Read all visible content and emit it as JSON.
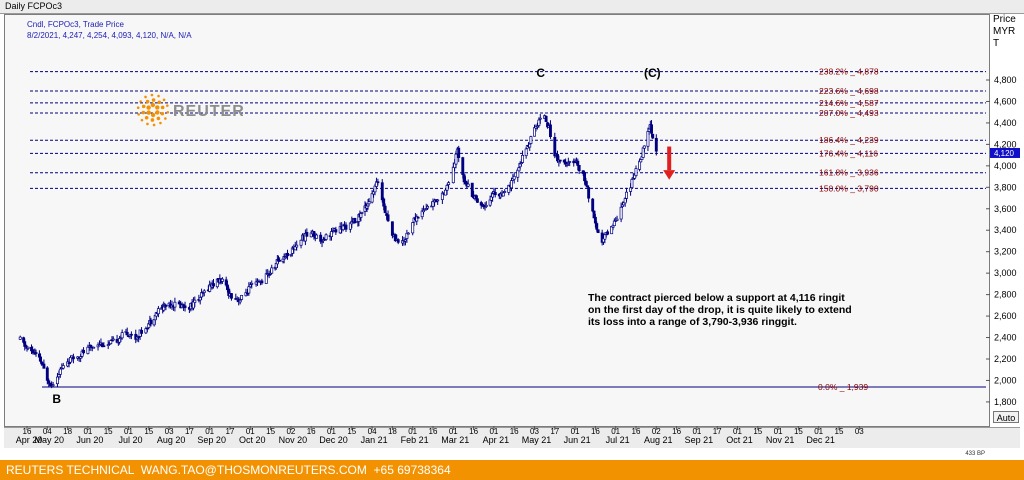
{
  "window": {
    "title": "Daily FCPOc3"
  },
  "header": {
    "line1": "Cndl, FCPOc3, Trade Price",
    "line2": "8/2/2021, 4,247, 4,254, 4,093, 4,120, N/A, N/A"
  },
  "price_axis": {
    "title": "Price\nMYR\nT"
  },
  "auto_label": "Auto",
  "logo": {
    "text": "REUTERS",
    "color": "#f39200"
  },
  "annotation": "The contract pierced below a support at 4,116 ringit\non the first day of the drop, it is quite likely to extend\nits loss into a range of 3,790-3,936 ringgit.",
  "footer": {
    "text": "REUTERS TECHNICAL  WANG.TAO@THOSMONREUTERS.COM  +65 69738364"
  },
  "colors": {
    "candle": "#000080",
    "fib_line": "#00007f",
    "fib_text": "#8b0000",
    "arrow": "#e02020",
    "footer_bg": "#f39200",
    "last_price_tag": "#1010c8"
  },
  "chart_data": {
    "type": "candlestick",
    "instrument": "FCPOc3",
    "ylim": [
      1700,
      5000
    ],
    "y_ticks": [
      1800,
      2000,
      2200,
      2400,
      2600,
      2800,
      3000,
      3200,
      3400,
      3600,
      3800,
      4000,
      4200,
      4400,
      4600,
      4800
    ],
    "y_tick_labels": [
      "1,800",
      "2,000",
      "2,200",
      "2,400",
      "2,600",
      "2,800",
      "3,000",
      "3,200",
      "3,400",
      "3,600",
      "3,800",
      "4,000",
      "4,200",
      "4,400",
      "4,600",
      "4,800"
    ],
    "x_ticks": [
      {
        "top": "16",
        "bottom": "Apr 20",
        "date": "2020-04-16"
      },
      {
        "top": "04",
        "bottom": "May 20",
        "date": "2020-05-04"
      },
      {
        "top": "18",
        "bottom": "",
        "date": "2020-05-18"
      },
      {
        "top": "01",
        "bottom": "Jun 20",
        "date": "2020-06-01"
      },
      {
        "top": "15",
        "bottom": "",
        "date": "2020-06-15"
      },
      {
        "top": "01",
        "bottom": "Jul 20",
        "date": "2020-07-01"
      },
      {
        "top": "15",
        "bottom": "",
        "date": "2020-07-15"
      },
      {
        "top": "03",
        "bottom": "Aug 20",
        "date": "2020-08-03"
      },
      {
        "top": "17",
        "bottom": "",
        "date": "2020-08-17"
      },
      {
        "top": "01",
        "bottom": "Sep 20",
        "date": "2020-09-01"
      },
      {
        "top": "17",
        "bottom": "",
        "date": "2020-09-17"
      },
      {
        "top": "01",
        "bottom": "Oct 20",
        "date": "2020-10-01"
      },
      {
        "top": "15",
        "bottom": "",
        "date": "2020-10-15"
      },
      {
        "top": "02",
        "bottom": "Nov 20",
        "date": "2020-11-02"
      },
      {
        "top": "16",
        "bottom": "",
        "date": "2020-11-16"
      },
      {
        "top": "01",
        "bottom": "Dec 20",
        "date": "2020-12-01"
      },
      {
        "top": "15",
        "bottom": "",
        "date": "2020-12-15"
      },
      {
        "top": "04",
        "bottom": "Jan 21",
        "date": "2021-01-04"
      },
      {
        "top": "18",
        "bottom": "",
        "date": "2021-01-18"
      },
      {
        "top": "01",
        "bottom": "Feb 21",
        "date": "2021-02-01"
      },
      {
        "top": "16",
        "bottom": "",
        "date": "2021-02-16"
      },
      {
        "top": "01",
        "bottom": "Mar 21",
        "date": "2021-03-01"
      },
      {
        "top": "16",
        "bottom": "",
        "date": "2021-03-16"
      },
      {
        "top": "01",
        "bottom": "Apr 21",
        "date": "2021-04-01"
      },
      {
        "top": "16",
        "bottom": "",
        "date": "2021-04-16"
      },
      {
        "top": "03",
        "bottom": "May 21",
        "date": "2021-05-03"
      },
      {
        "top": "17",
        "bottom": "",
        "date": "2021-05-17"
      },
      {
        "top": "01",
        "bottom": "Jun 21",
        "date": "2021-06-01"
      },
      {
        "top": "16",
        "bottom": "",
        "date": "2021-06-16"
      },
      {
        "top": "01",
        "bottom": "Jul 21",
        "date": "2021-07-01"
      },
      {
        "top": "16",
        "bottom": "",
        "date": "2021-07-16"
      },
      {
        "top": "02",
        "bottom": "Aug 21",
        "date": "2021-08-02"
      },
      {
        "top": "16",
        "bottom": "",
        "date": "2021-08-16"
      },
      {
        "top": "01",
        "bottom": "Sep 21",
        "date": "2021-09-01"
      },
      {
        "top": "17",
        "bottom": "",
        "date": "2021-09-17"
      },
      {
        "top": "01",
        "bottom": "Oct 21",
        "date": "2021-10-01"
      },
      {
        "top": "15",
        "bottom": "",
        "date": "2021-10-15"
      },
      {
        "top": "01",
        "bottom": "Nov 21",
        "date": "2021-11-01"
      },
      {
        "top": "15",
        "bottom": "",
        "date": "2021-11-15"
      },
      {
        "top": "01",
        "bottom": "Dec 21",
        "date": "2021-12-01"
      },
      {
        "top": "15",
        "bottom": "",
        "date": "2021-12-15"
      },
      {
        "top": "03",
        "bottom": "",
        "date": "2022-01-03"
      }
    ],
    "price_path": [
      [
        "2020-04-10",
        2380
      ],
      [
        "2020-04-16",
        2300
      ],
      [
        "2020-04-22",
        2260
      ],
      [
        "2020-04-28",
        2180
      ],
      [
        "2020-05-04",
        2020
      ],
      [
        "2020-05-07",
        1960
      ],
      [
        "2020-05-12",
        2080
      ],
      [
        "2020-05-18",
        2180
      ],
      [
        "2020-05-25",
        2230
      ],
      [
        "2020-06-01",
        2290
      ],
      [
        "2020-06-08",
        2350
      ],
      [
        "2020-06-15",
        2330
      ],
      [
        "2020-06-22",
        2380
      ],
      [
        "2020-06-29",
        2450
      ],
      [
        "2020-07-06",
        2400
      ],
      [
        "2020-07-15",
        2530
      ],
      [
        "2020-07-24",
        2650
      ],
      [
        "2020-08-03",
        2720
      ],
      [
        "2020-08-10",
        2700
      ],
      [
        "2020-08-17",
        2690
      ],
      [
        "2020-08-24",
        2760
      ],
      [
        "2020-09-01",
        2880
      ],
      [
        "2020-09-10",
        2940
      ],
      [
        "2020-09-17",
        2800
      ],
      [
        "2020-09-24",
        2750
      ],
      [
        "2020-10-01",
        2870
      ],
      [
        "2020-10-08",
        2920
      ],
      [
        "2020-10-15",
        3010
      ],
      [
        "2020-10-22",
        3120
      ],
      [
        "2020-11-02",
        3200
      ],
      [
        "2020-11-09",
        3320
      ],
      [
        "2020-11-16",
        3380
      ],
      [
        "2020-11-23",
        3310
      ],
      [
        "2020-12-01",
        3380
      ],
      [
        "2020-12-08",
        3420
      ],
      [
        "2020-12-15",
        3460
      ],
      [
        "2020-12-22",
        3520
      ],
      [
        "2021-01-04",
        3720
      ],
      [
        "2021-01-08",
        3860
      ],
      [
        "2021-01-12",
        3640
      ],
      [
        "2021-01-18",
        3350
      ],
      [
        "2021-01-25",
        3280
      ],
      [
        "2021-02-01",
        3480
      ],
      [
        "2021-02-08",
        3580
      ],
      [
        "2021-02-16",
        3650
      ],
      [
        "2021-02-24",
        3780
      ],
      [
        "2021-03-01",
        3960
      ],
      [
        "2021-03-04",
        4150
      ],
      [
        "2021-03-09",
        3880
      ],
      [
        "2021-03-16",
        3720
      ],
      [
        "2021-03-24",
        3620
      ],
      [
        "2021-04-01",
        3750
      ],
      [
        "2021-04-08",
        3720
      ],
      [
        "2021-04-16",
        3880
      ],
      [
        "2021-04-22",
        4050
      ],
      [
        "2021-04-30",
        4250
      ],
      [
        "2021-05-06",
        4420
      ],
      [
        "2021-05-10",
        4480
      ],
      [
        "2021-05-14",
        4300
      ],
      [
        "2021-05-17",
        4100
      ],
      [
        "2021-05-21",
        4050
      ],
      [
        "2021-05-26",
        4000
      ],
      [
        "2021-06-01",
        4060
      ],
      [
        "2021-06-08",
        3880
      ],
      [
        "2021-06-14",
        3560
      ],
      [
        "2021-06-17",
        3380
      ],
      [
        "2021-06-21",
        3300
      ],
      [
        "2021-06-25",
        3380
      ],
      [
        "2021-07-01",
        3500
      ],
      [
        "2021-07-07",
        3680
      ],
      [
        "2021-07-13",
        3850
      ],
      [
        "2021-07-19",
        4050
      ],
      [
        "2021-07-23",
        4180
      ],
      [
        "2021-07-28",
        4380
      ],
      [
        "2021-08-02",
        4120
      ]
    ],
    "fib_levels": [
      {
        "label": "238.2%",
        "value_label": "4,878",
        "value": 4878
      },
      {
        "label": "223.6%",
        "value_label": "4,698",
        "value": 4698
      },
      {
        "label": "214.6%",
        "value_label": "4,587",
        "value": 4587
      },
      {
        "label": "207.0%",
        "value_label": "4,493",
        "value": 4493
      },
      {
        "label": "186.4%",
        "value_label": "4,239",
        "value": 4239
      },
      {
        "label": "176.4%",
        "value_label": "4,116",
        "value": 4116
      },
      {
        "label": "161.8%",
        "value_label": "3,936",
        "value": 3936
      },
      {
        "label": "150.0%",
        "value_label": "3,790",
        "value": 3790
      },
      {
        "label": "0.0%",
        "value_label": "1,939",
        "value": 1939
      }
    ],
    "wave_labels": [
      {
        "text": "B",
        "date": "2020-05-07",
        "price": 1939,
        "position": "below"
      },
      {
        "text": "C",
        "date": "2021-05-10",
        "price": 4480,
        "position": "above"
      },
      {
        "text": "(C)",
        "date": "2021-07-28",
        "price": 4480,
        "position": "above"
      }
    ],
    "last_price": {
      "value": 4120,
      "label": "4,120"
    },
    "axis_footer_text": "433 BP"
  }
}
